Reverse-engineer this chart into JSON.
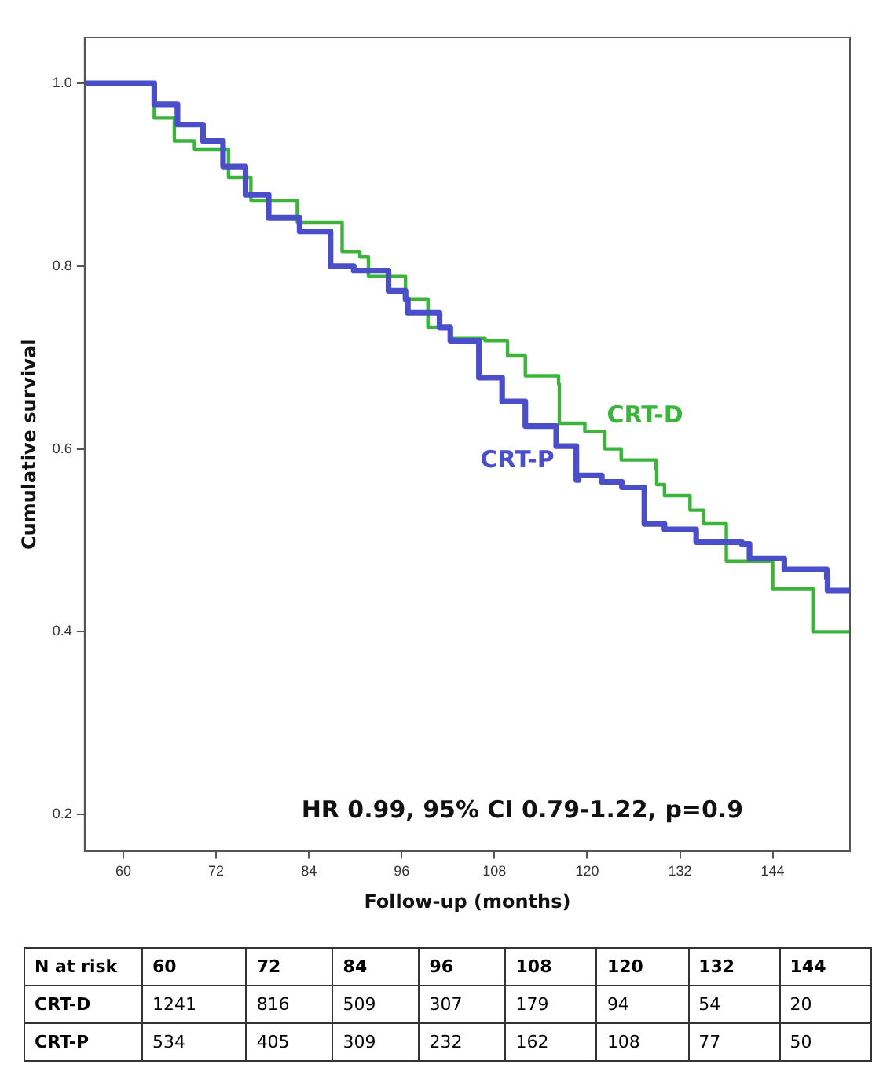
{
  "chart_data": {
    "type": "step",
    "xlabel": "Follow-up (months)",
    "ylabel": "Cumulative survival",
    "xlim": [
      55,
      154
    ],
    "xticks": [
      60,
      72,
      84,
      96,
      108,
      120,
      132,
      144
    ],
    "ylim": [
      0.16,
      1.05
    ],
    "yticks": [
      0.2,
      0.4,
      0.6,
      0.8,
      {
        "value": 1,
        "label": "1.0"
      }
    ],
    "grid": false,
    "legend": false,
    "marker": "none",
    "line_style": "solid",
    "series": [
      {
        "name": "CRT-D",
        "color": "#3cb43c",
        "x": [
          55,
          60.1,
          64,
          66.6,
          69.2,
          73.6,
          76.5,
          82.5,
          88.3,
          90.6,
          91.7,
          96.5,
          99.4,
          102.3,
          106.8,
          109.7,
          112,
          116.3,
          116.4,
          119.7,
          122.3,
          124.4,
          128.9,
          129,
          130,
          133.3,
          135.1,
          138,
          144,
          149.2,
          153.9
        ],
        "values": [
          1.0,
          1.0,
          0.962,
          0.937,
          0.928,
          0.897,
          0.872,
          0.848,
          0.816,
          0.81,
          0.789,
          0.764,
          0.733,
          0.721,
          0.718,
          0.702,
          0.68,
          0.671,
          0.628,
          0.619,
          0.6,
          0.588,
          0.578,
          0.561,
          0.549,
          0.533,
          0.518,
          0.477,
          0.447,
          0.4,
          0.4
        ]
      },
      {
        "name": "CRT-P",
        "color": "#4a4ec8",
        "x": [
          55,
          60.7,
          64,
          67,
          70.3,
          72.9,
          75.8,
          78.8,
          82.8,
          86.8,
          89.8,
          94.3,
          96.5,
          96.8,
          100.9,
          102.3,
          106,
          109,
          112,
          116,
          118.6,
          118.9,
          121.9,
          124.5,
          127.4,
          130,
          134.1,
          140,
          141,
          145.5,
          151,
          151.1,
          154
        ],
        "values": [
          1.0,
          1.0,
          0.977,
          0.955,
          0.937,
          0.909,
          0.878,
          0.853,
          0.838,
          0.8,
          0.795,
          0.773,
          0.764,
          0.749,
          0.733,
          0.718,
          0.678,
          0.652,
          0.625,
          0.603,
          0.566,
          0.571,
          0.564,
          0.558,
          0.518,
          0.512,
          0.498,
          0.496,
          0.48,
          0.468,
          0.459,
          0.445,
          0.445
        ]
      }
    ],
    "annotations": [
      "HR 0.99, 95% CI 0.79-1.22, p=0.9",
      "N at risk",
      "60",
      "72",
      "84",
      "96",
      "108",
      "120",
      "132",
      "144",
      "CRT-D",
      "1241",
      "816",
      "509",
      "307",
      "179",
      "94",
      "54",
      "20",
      "CRT-P",
      "534",
      "405",
      "309",
      "232",
      "162",
      "108",
      "77",
      "50"
    ]
  }
}
